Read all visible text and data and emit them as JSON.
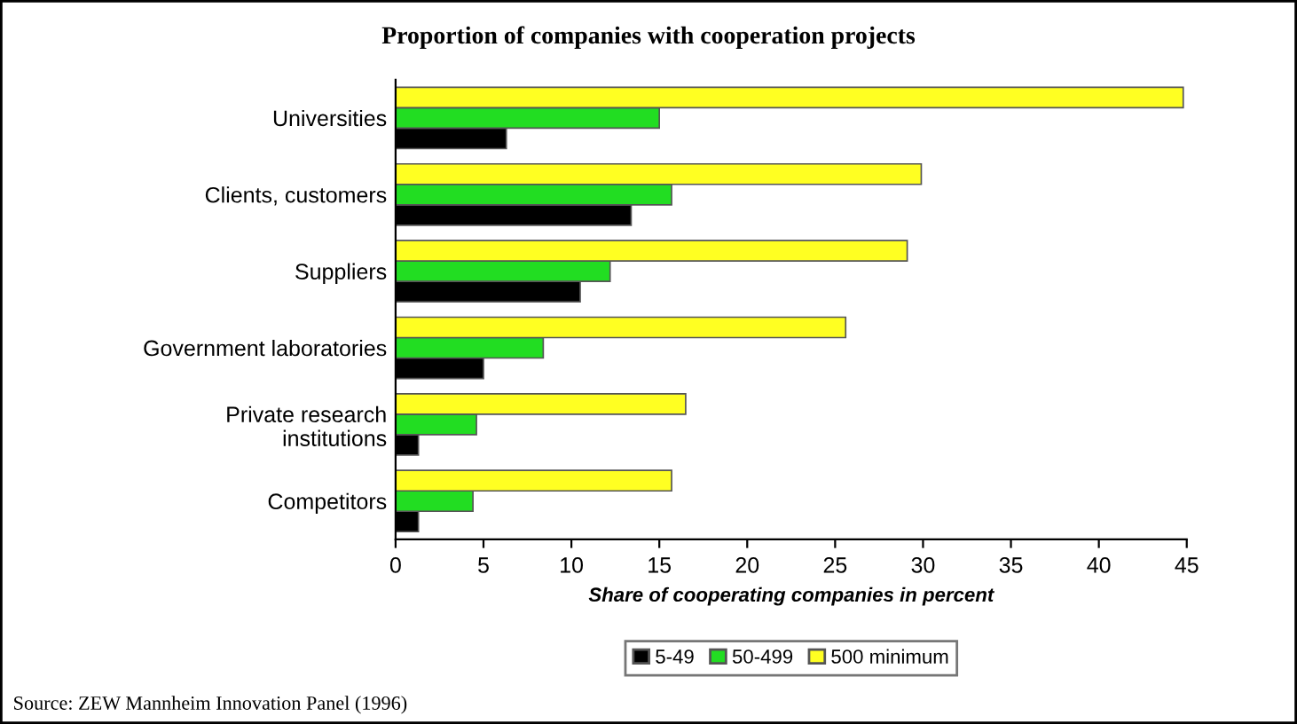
{
  "chart_data": {
    "type": "bar",
    "orientation": "horizontal",
    "title": "Proportion of companies with cooperation projects",
    "xlabel": "Share of cooperating companies in percent",
    "categories": [
      "Universities",
      "Clients, customers",
      "Suppliers",
      "Government laboratories",
      "Private research\ninstitutions",
      "Competitors"
    ],
    "series": [
      {
        "name": "5-49",
        "color": "#000000",
        "values": [
          6.3,
          13.4,
          10.5,
          5.0,
          1.3,
          1.3
        ]
      },
      {
        "name": "50-499",
        "color": "#22dd22",
        "values": [
          15.0,
          15.7,
          12.2,
          8.4,
          4.6,
          4.4
        ]
      },
      {
        "name": "500 minimum",
        "color": "#ffff22",
        "values": [
          44.8,
          29.9,
          29.1,
          25.6,
          16.5,
          15.7
        ]
      }
    ],
    "xlim": [
      0,
      45
    ],
    "xticks": [
      0,
      5,
      10,
      15,
      20,
      25,
      30,
      35,
      40,
      45
    ],
    "grid": false,
    "legend": "bottom",
    "annotations": [
      "Source: ZEW Mannheim Innovation Panel (1996)"
    ]
  }
}
